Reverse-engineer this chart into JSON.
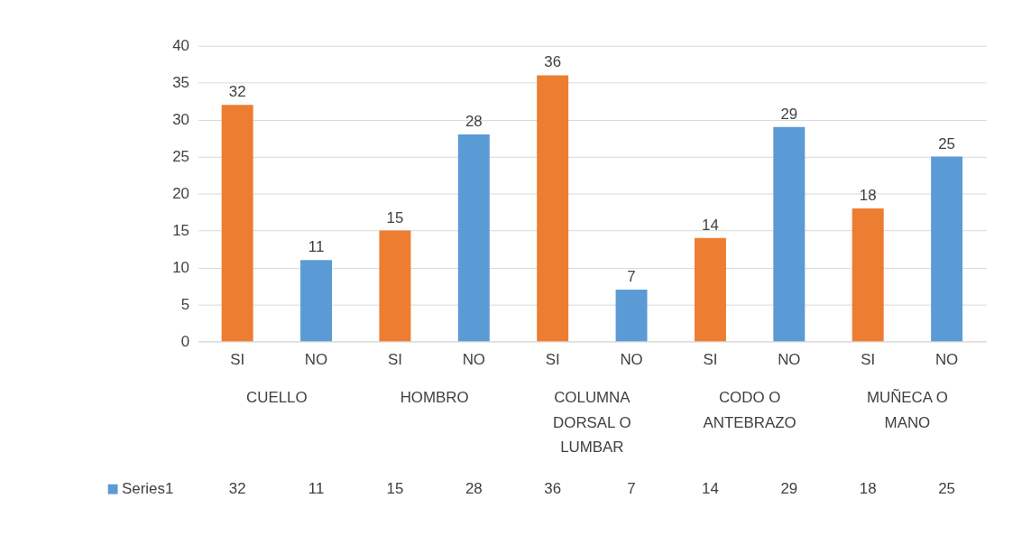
{
  "chart_data": {
    "type": "bar",
    "categories": [
      "SI",
      "NO",
      "SI",
      "NO",
      "SI",
      "NO",
      "SI",
      "NO",
      "SI",
      "NO"
    ],
    "series": [
      {
        "name": "Series1",
        "values": [
          32,
          11,
          15,
          28,
          36,
          7,
          14,
          29,
          18,
          25
        ],
        "value_labels": [
          "32",
          "11",
          "15",
          "28",
          "36",
          "7",
          "14",
          "29",
          "18",
          "25"
        ]
      }
    ],
    "colors": [
      "#ed7d31",
      "#5b9bd5",
      "#ed7d31",
      "#5b9bd5",
      "#ed7d31",
      "#5b9bd5",
      "#ed7d31",
      "#5b9bd5",
      "#ed7d31",
      "#5b9bd5"
    ],
    "annotations": [
      "CUELLO",
      "HOMBRO",
      "COLUMNA DORSAL O LUMBAR",
      "CODO O ANTEBRAZO",
      "MUÑECA O MANO"
    ],
    "ylim": [
      0,
      40
    ],
    "yticks": [
      0,
      5,
      10,
      15,
      20,
      25,
      30,
      35,
      40
    ],
    "grid": "y",
    "data_labels": true,
    "legend": "bottom"
  }
}
